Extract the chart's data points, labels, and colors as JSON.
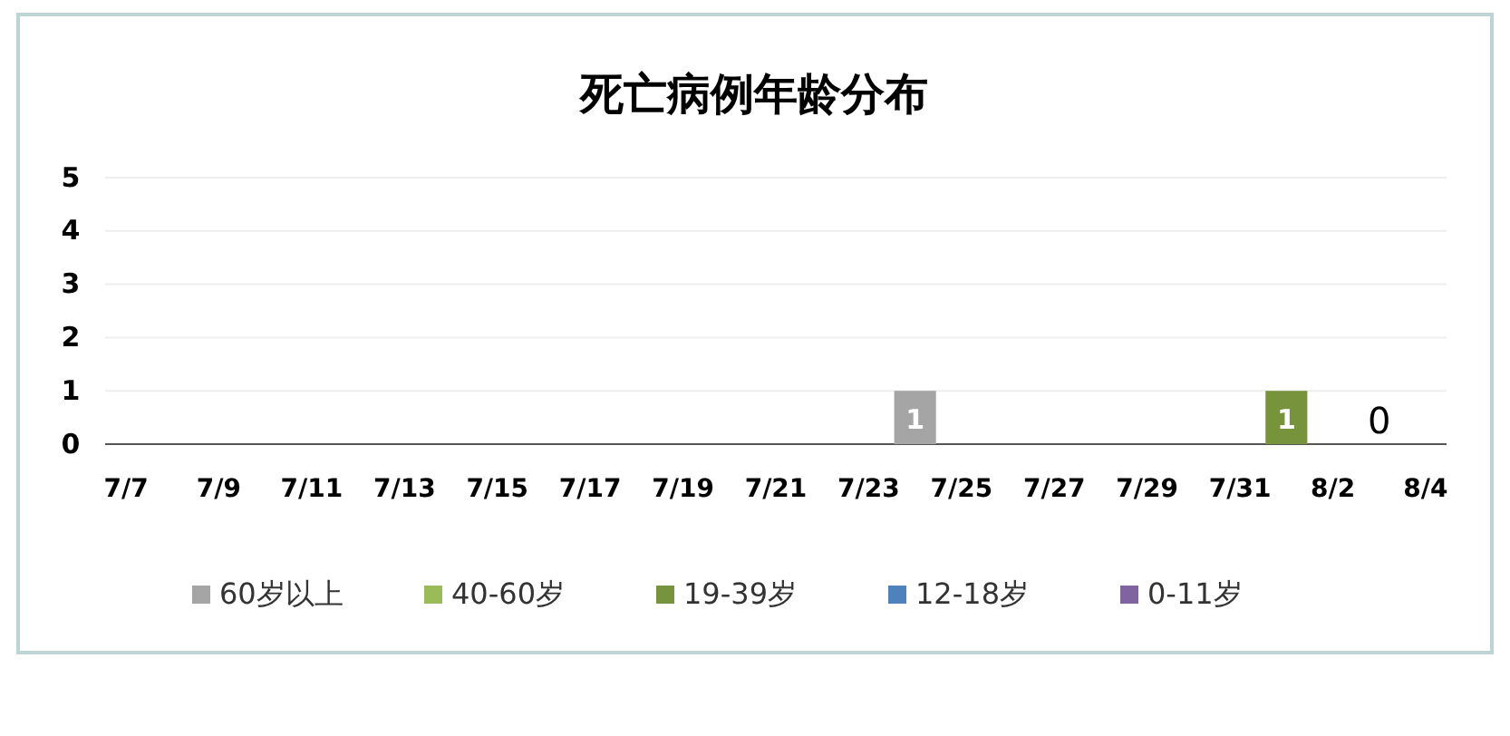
{
  "chart_data": {
    "type": "bar",
    "title": "死亡病例年龄分布",
    "grid": "y",
    "legend": "bottom",
    "categories": [
      "7/7",
      null,
      "7/9",
      null,
      "7/11",
      null,
      "7/13",
      null,
      "7/15",
      null,
      "7/17",
      null,
      "7/19",
      null,
      "7/21",
      null,
      "7/23",
      null,
      "7/25",
      null,
      "7/27",
      null,
      "7/29",
      null,
      "7/31",
      null,
      "8/2",
      null,
      "8/4"
    ],
    "ylim": [
      0,
      5
    ],
    "yticks": [
      0,
      1,
      2,
      3,
      4,
      5
    ],
    "series": [
      {
        "name": "60岁以上",
        "color": "#a5a5a5",
        "values": [
          null,
          null,
          null,
          null,
          null,
          null,
          null,
          null,
          null,
          null,
          null,
          null,
          null,
          null,
          null,
          null,
          null,
          1,
          null,
          null,
          null,
          null,
          null,
          null,
          null,
          null,
          null,
          0,
          null
        ],
        "value_labels": [
          null,
          null,
          null,
          null,
          null,
          null,
          null,
          null,
          null,
          null,
          null,
          null,
          null,
          null,
          null,
          null,
          null,
          "1",
          null,
          null,
          null,
          null,
          null,
          null,
          null,
          null,
          null,
          "0",
          null
        ]
      },
      {
        "name": "40-60岁",
        "color": "#9bbb59",
        "values": [
          null,
          null,
          null,
          null,
          null,
          null,
          null,
          null,
          null,
          null,
          null,
          null,
          null,
          null,
          null,
          null,
          null,
          null,
          null,
          null,
          null,
          null,
          null,
          null,
          null,
          null,
          null,
          null,
          null
        ]
      },
      {
        "name": "19-39岁",
        "color": "#77933c",
        "values": [
          null,
          null,
          null,
          null,
          null,
          null,
          null,
          null,
          null,
          null,
          null,
          null,
          null,
          null,
          null,
          null,
          null,
          null,
          null,
          null,
          null,
          null,
          null,
          null,
          null,
          1,
          null,
          null,
          null
        ],
        "value_labels": [
          null,
          null,
          null,
          null,
          null,
          null,
          null,
          null,
          null,
          null,
          null,
          null,
          null,
          null,
          null,
          null,
          null,
          null,
          null,
          null,
          null,
          null,
          null,
          null,
          null,
          "1",
          null,
          null,
          null
        ]
      },
      {
        "name": "12-18岁",
        "color": "#4f81bd",
        "values": [
          null,
          null,
          null,
          null,
          null,
          null,
          null,
          null,
          null,
          null,
          null,
          null,
          null,
          null,
          null,
          null,
          null,
          null,
          null,
          null,
          null,
          null,
          null,
          null,
          null,
          null,
          null,
          null,
          null
        ]
      },
      {
        "name": "0-11岁",
        "color": "#8064a2",
        "values": [
          null,
          null,
          null,
          null,
          null,
          null,
          null,
          null,
          null,
          null,
          null,
          null,
          null,
          null,
          null,
          null,
          null,
          null,
          null,
          null,
          null,
          null,
          null,
          null,
          null,
          null,
          null,
          null,
          null
        ]
      }
    ]
  }
}
